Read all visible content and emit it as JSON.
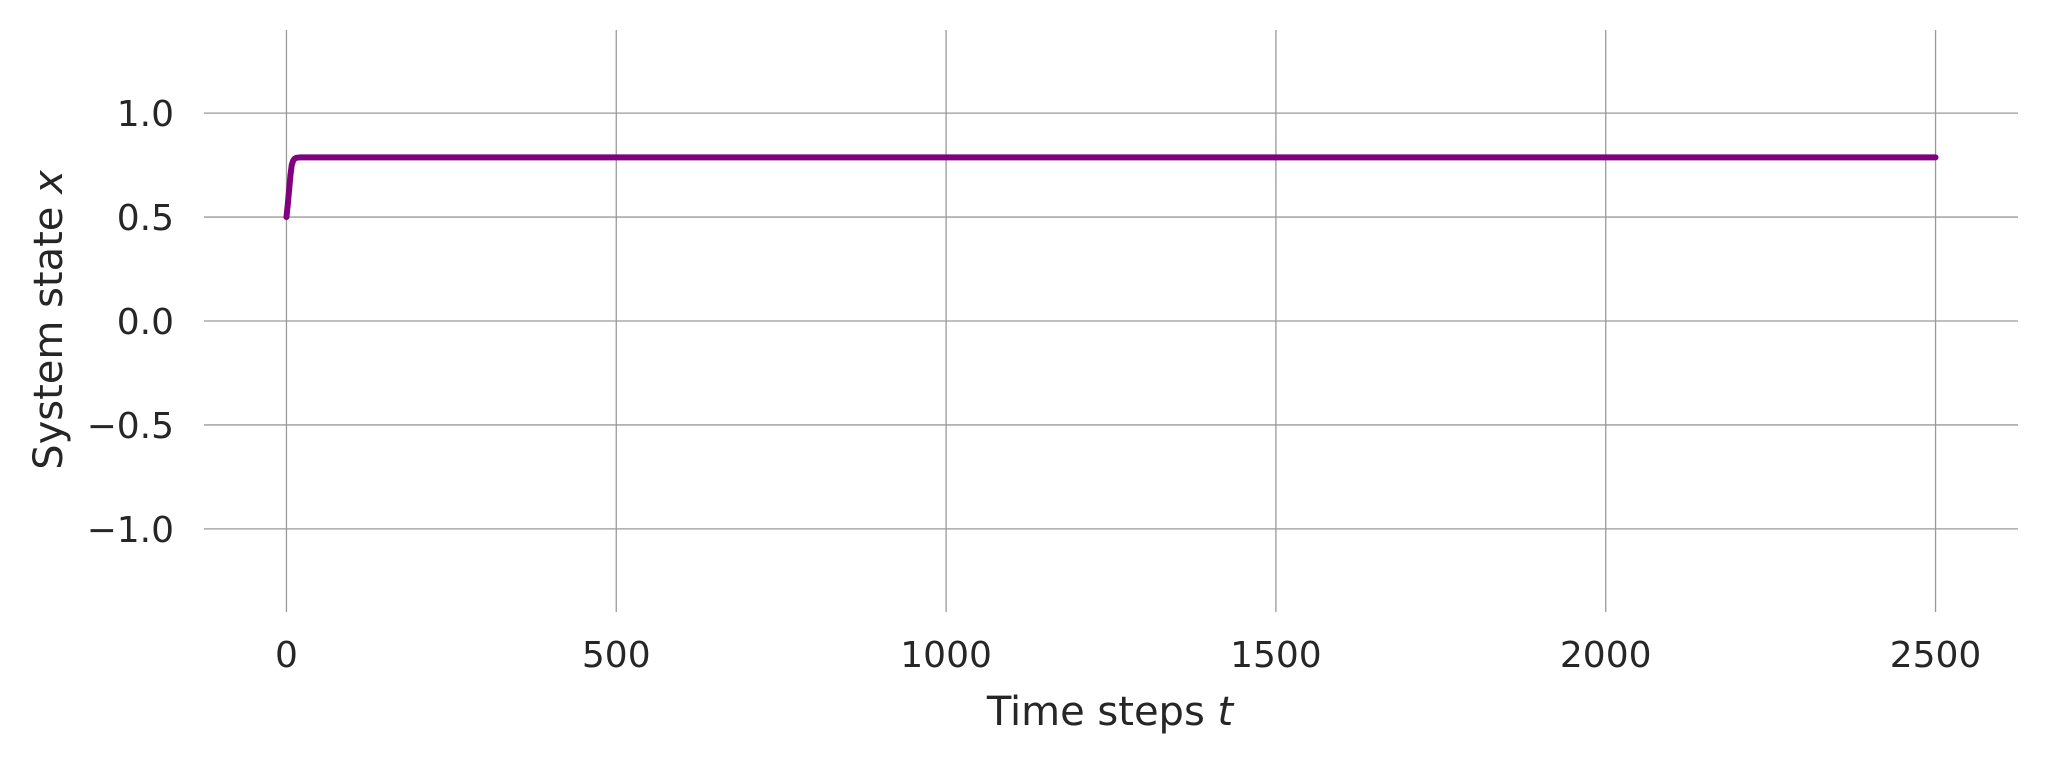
{
  "chart_data": {
    "type": "line",
    "title": "",
    "xlabel": "Time steps ",
    "xlabel_math": "t",
    "ylabel": "System state ",
    "ylabel_math": "x",
    "xlim": [
      -125,
      2625
    ],
    "ylim": [
      -1.4,
      1.4
    ],
    "xticks": [
      0,
      500,
      1000,
      1500,
      2000,
      2500
    ],
    "xtick_labels": [
      "0",
      "500",
      "1000",
      "1500",
      "2000",
      "2500"
    ],
    "yticks": [
      1.0,
      0.5,
      0.0,
      -0.5,
      -1.0
    ],
    "ytick_labels": [
      "1.0",
      "0.5",
      "0.0",
      "−0.5",
      "−1.0"
    ],
    "grid": true,
    "legend": "none",
    "series": [
      {
        "color": "#800080",
        "x": [
          0,
          2,
          4,
          6,
          8,
          10,
          12,
          15,
          20,
          30,
          50,
          100,
          500,
          1000,
          1500,
          2000,
          2500
        ],
        "y": [
          0.5,
          0.56,
          0.63,
          0.7,
          0.75,
          0.77,
          0.78,
          0.785,
          0.787,
          0.787,
          0.787,
          0.787,
          0.787,
          0.787,
          0.787,
          0.787,
          0.787
        ]
      }
    ]
  }
}
